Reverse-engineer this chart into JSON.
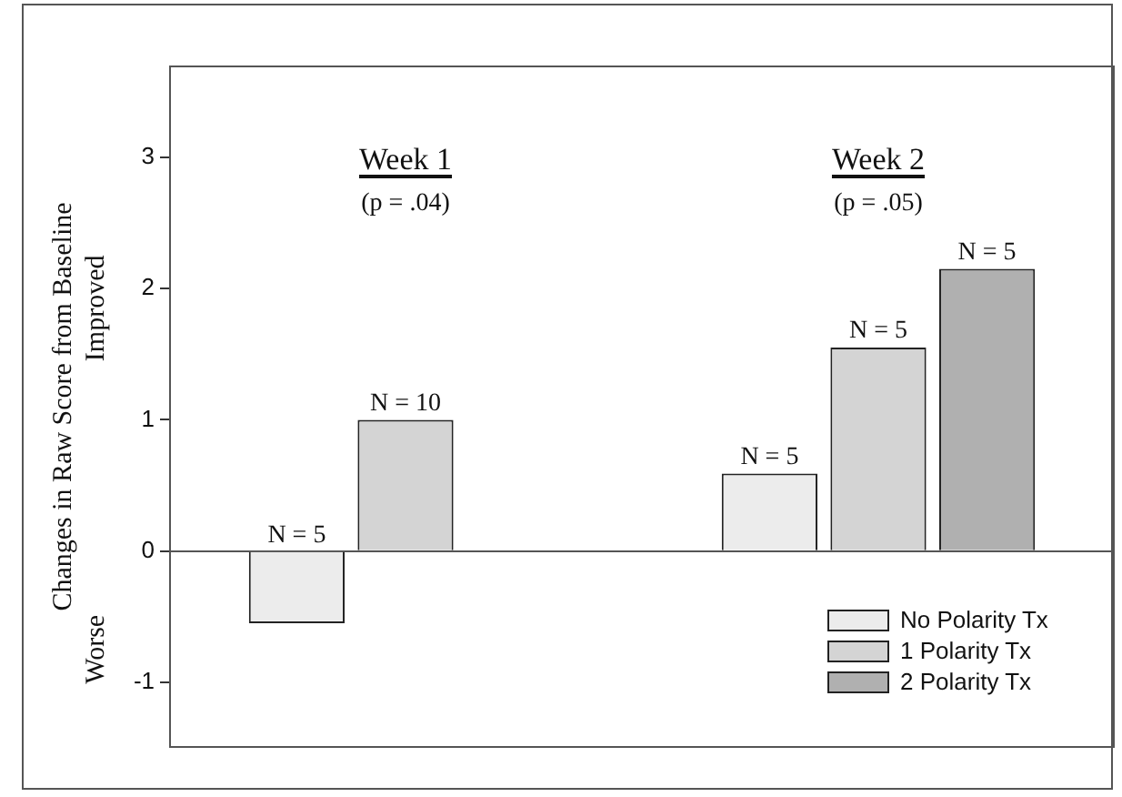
{
  "chart_data": {
    "type": "bar",
    "categories": [
      "Week 1",
      "Week 2"
    ],
    "ylabel": "Changes in Raw Score from Baseline",
    "ylim": [
      -1.5,
      3.7
    ],
    "yticks": [
      -1,
      0,
      1,
      2,
      3
    ],
    "series": [
      {
        "name": "No Polarity Tx",
        "color": "#ececec",
        "values": [
          -0.55,
          0.59
        ]
      },
      {
        "name": "1 Polarity Tx",
        "color": "#d4d4d4",
        "values": [
          1.0,
          1.55
        ]
      },
      {
        "name": "2 Polarity Tx",
        "color": "#b0b0b0",
        "values": [
          null,
          2.15
        ]
      }
    ],
    "annotations": [
      "(p = .04)",
      "(p = .05)",
      "Improved",
      "Worse",
      "N = 5",
      "N = 10",
      "N = 5",
      "N = 5",
      "N = 5"
    ],
    "legend": "bottom right"
  }
}
